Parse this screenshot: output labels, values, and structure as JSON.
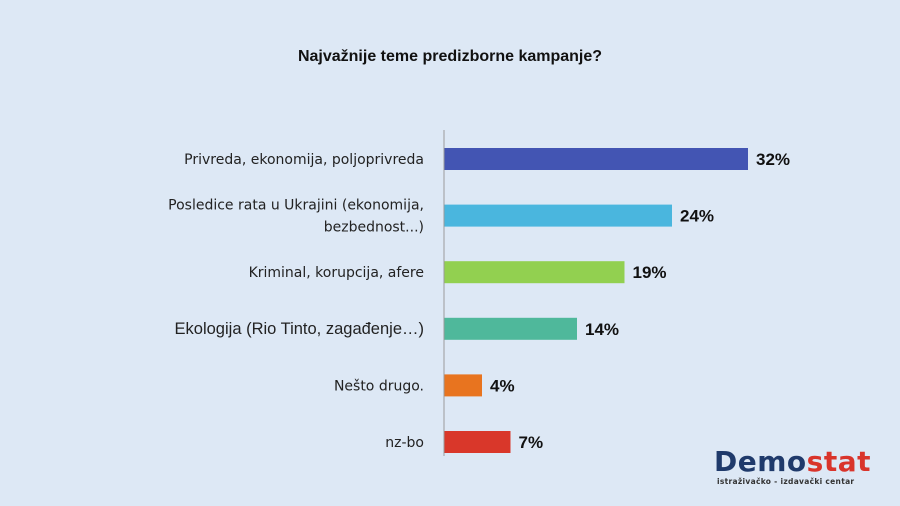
{
  "chart_data": {
    "type": "bar",
    "orientation": "horizontal",
    "title": "Najvažnije teme predizborne kampanje?",
    "categories": [
      [
        "Privreda, ekonomija, poljoprivreda"
      ],
      [
        "Posledice rata u Ukrajini (ekonomija,",
        "bezbednost...)"
      ],
      [
        "Kriminal, korupcija, afere"
      ],
      [
        "Ekologija  (Rio Tinto, zagađenje…)"
      ],
      [
        "Nešto drugo."
      ],
      [
        "nz-bo"
      ]
    ],
    "values": [
      32,
      24,
      19,
      14,
      4,
      7
    ],
    "value_labels": [
      "32%",
      "24%",
      "19%",
      "14%",
      "4%",
      "7%"
    ],
    "colors": [
      "#4355b3",
      "#4ab6de",
      "#92d050",
      "#4fb89b",
      "#e8741f",
      "#d9372a"
    ],
    "xlim": [
      0,
      32
    ],
    "grid": false,
    "legend": "none"
  },
  "logo": {
    "main_a": "Demo",
    "main_b": "stat",
    "sub": "istraživačko - izdavački centar"
  }
}
